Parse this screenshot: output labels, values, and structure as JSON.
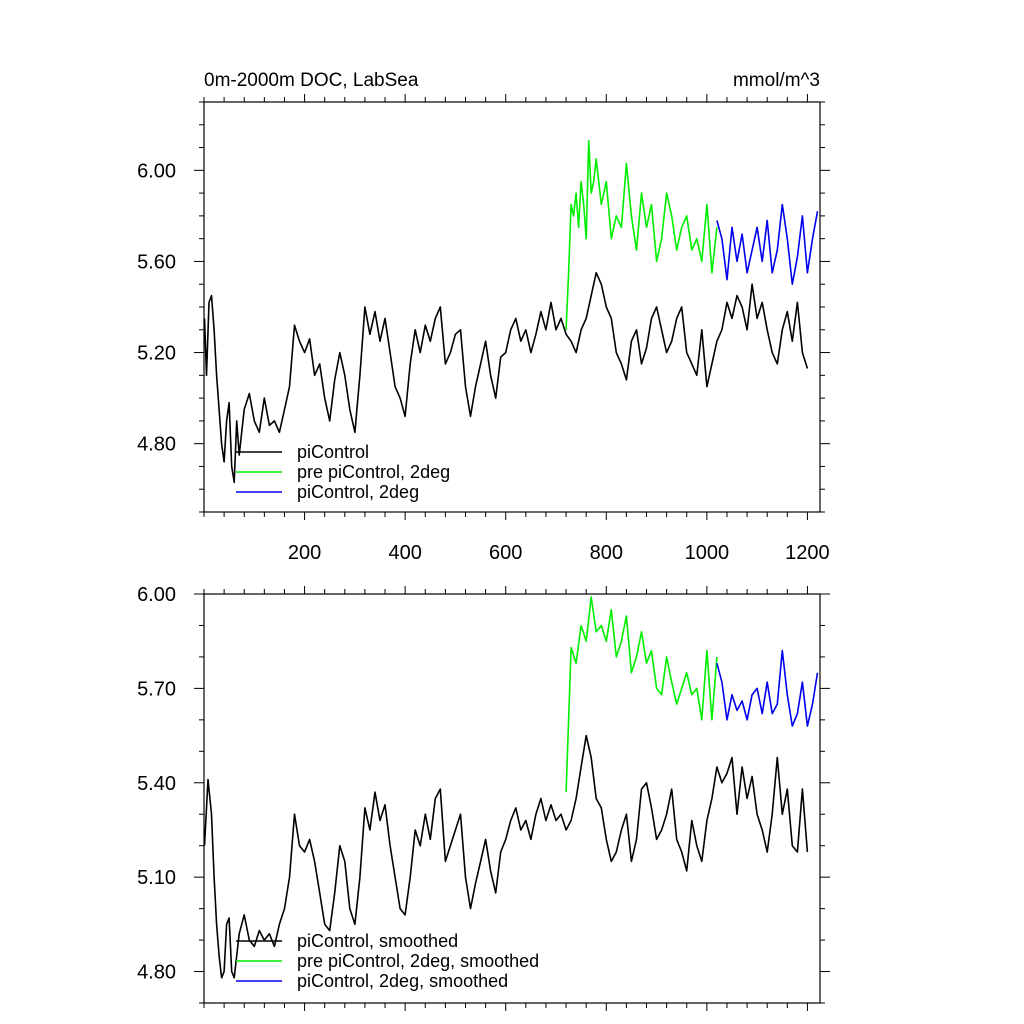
{
  "colors": {
    "piControl": "#000000",
    "pre_piControl_2deg": "#00ee00",
    "piControl_2deg": "#0000ee"
  },
  "chart_data": [
    {
      "type": "line",
      "title": "0m-2000m DOC, LabSea",
      "units": "mmol/m^3",
      "xlim": [
        0,
        1225
      ],
      "ylim": [
        4.5,
        6.3
      ],
      "xticks": [
        200,
        400,
        600,
        800,
        1000,
        1200
      ],
      "xtick_labels": [
        "200",
        "400",
        "600",
        "800",
        "1000",
        "1200"
      ],
      "yticks": [
        4.8,
        5.2,
        5.6,
        6.0
      ],
      "ytick_labels": [
        "4.80",
        "5.20",
        "5.60",
        "6.00"
      ],
      "legend_position": "bottom-left",
      "series": [
        {
          "name": "piControl",
          "color": "#000000",
          "x": [
            1,
            5,
            10,
            15,
            20,
            25,
            30,
            35,
            40,
            45,
            50,
            55,
            60,
            65,
            70,
            80,
            90,
            100,
            110,
            120,
            130,
            140,
            150,
            160,
            170,
            180,
            190,
            200,
            210,
            220,
            230,
            240,
            250,
            260,
            270,
            280,
            290,
            300,
            310,
            320,
            330,
            340,
            350,
            360,
            370,
            380,
            390,
            400,
            410,
            420,
            430,
            440,
            450,
            460,
            470,
            480,
            490,
            500,
            510,
            520,
            530,
            540,
            550,
            560,
            570,
            580,
            590,
            600,
            610,
            620,
            630,
            640,
            650,
            660,
            670,
            680,
            690,
            700,
            710,
            720,
            730,
            740,
            750,
            760,
            770,
            780,
            790,
            800,
            810,
            820,
            830,
            840,
            850,
            860,
            870,
            880,
            890,
            900,
            910,
            920,
            930,
            940,
            950,
            960,
            970,
            980,
            990,
            1000,
            1010,
            1020,
            1030,
            1040,
            1050,
            1060,
            1070,
            1080,
            1090,
            1100,
            1110,
            1120,
            1130,
            1140,
            1150,
            1160,
            1170,
            1180,
            1190,
            1200
          ],
          "y": [
            5.35,
            5.1,
            5.42,
            5.45,
            5.3,
            5.1,
            4.95,
            4.8,
            4.72,
            4.9,
            4.98,
            4.7,
            4.63,
            4.9,
            4.75,
            4.95,
            5.02,
            4.9,
            4.85,
            5.0,
            4.88,
            4.9,
            4.85,
            4.95,
            5.05,
            5.32,
            5.25,
            5.2,
            5.26,
            5.1,
            5.15,
            5.0,
            4.9,
            5.08,
            5.2,
            5.1,
            4.95,
            4.85,
            5.1,
            5.4,
            5.28,
            5.38,
            5.25,
            5.35,
            5.2,
            5.05,
            5.0,
            4.92,
            5.15,
            5.3,
            5.2,
            5.32,
            5.25,
            5.35,
            5.4,
            5.15,
            5.2,
            5.28,
            5.3,
            5.05,
            4.92,
            5.05,
            5.15,
            5.25,
            5.1,
            5.0,
            5.18,
            5.2,
            5.3,
            5.35,
            5.25,
            5.3,
            5.2,
            5.28,
            5.38,
            5.3,
            5.42,
            5.3,
            5.35,
            5.28,
            5.25,
            5.2,
            5.3,
            5.35,
            5.45,
            5.55,
            5.5,
            5.4,
            5.35,
            5.2,
            5.15,
            5.08,
            5.25,
            5.3,
            5.15,
            5.22,
            5.35,
            5.4,
            5.3,
            5.2,
            5.25,
            5.35,
            5.4,
            5.2,
            5.15,
            5.1,
            5.3,
            5.05,
            5.15,
            5.25,
            5.3,
            5.42,
            5.35,
            5.45,
            5.4,
            5.3,
            5.5,
            5.35,
            5.42,
            5.3,
            5.2,
            5.15,
            5.3,
            5.38,
            5.25,
            5.42,
            5.2,
            5.13
          ]
        },
        {
          "name": "pre piControl, 2deg",
          "color": "#00ee00",
          "x": [
            720,
            725,
            730,
            735,
            740,
            745,
            750,
            755,
            760,
            765,
            770,
            775,
            780,
            790,
            800,
            810,
            820,
            830,
            840,
            850,
            860,
            870,
            880,
            890,
            900,
            910,
            920,
            930,
            940,
            950,
            960,
            970,
            980,
            990,
            1000,
            1010,
            1020
          ],
          "y": [
            5.3,
            5.55,
            5.85,
            5.8,
            5.9,
            5.75,
            5.95,
            5.85,
            5.7,
            6.13,
            5.9,
            5.95,
            6.05,
            5.85,
            5.95,
            5.7,
            5.8,
            5.75,
            6.03,
            5.8,
            5.65,
            5.9,
            5.75,
            5.85,
            5.6,
            5.7,
            5.9,
            5.8,
            5.65,
            5.75,
            5.8,
            5.65,
            5.7,
            5.6,
            5.85,
            5.55,
            5.75
          ],
          "name_label": "pre piControl, 2deg"
        },
        {
          "name": "piControl, 2deg",
          "color": "#0000ee",
          "x": [
            1020,
            1030,
            1040,
            1050,
            1060,
            1070,
            1080,
            1090,
            1100,
            1110,
            1120,
            1130,
            1140,
            1150,
            1160,
            1170,
            1180,
            1190,
            1200,
            1210,
            1220
          ],
          "y": [
            5.78,
            5.7,
            5.52,
            5.75,
            5.6,
            5.72,
            5.55,
            5.65,
            5.75,
            5.6,
            5.78,
            5.55,
            5.65,
            5.85,
            5.7,
            5.5,
            5.62,
            5.8,
            5.55,
            5.7,
            5.82
          ]
        }
      ],
      "legend": [
        "piControl",
        "pre piControl, 2deg",
        "piControl, 2deg"
      ]
    },
    {
      "type": "line",
      "title": "",
      "xlim": [
        0,
        1225
      ],
      "ylim": [
        4.7,
        6.0
      ],
      "xticks": [
        200,
        400,
        600,
        800,
        1000,
        1200
      ],
      "yticks": [
        4.8,
        5.1,
        5.4,
        5.7,
        6.0
      ],
      "ytick_labels": [
        "4.80",
        "5.10",
        "5.40",
        "5.70",
        "6.00"
      ],
      "legend_position": "bottom-left",
      "series": [
        {
          "name": "piControl, smoothed",
          "color": "#000000",
          "x": [
            1,
            8,
            15,
            20,
            25,
            30,
            35,
            40,
            45,
            50,
            55,
            60,
            70,
            80,
            90,
            100,
            110,
            120,
            130,
            140,
            150,
            160,
            170,
            180,
            190,
            200,
            210,
            220,
            230,
            240,
            250,
            260,
            270,
            280,
            290,
            300,
            310,
            320,
            330,
            340,
            350,
            360,
            370,
            380,
            390,
            400,
            410,
            420,
            430,
            440,
            450,
            460,
            470,
            480,
            490,
            500,
            510,
            520,
            530,
            540,
            550,
            560,
            570,
            580,
            590,
            600,
            610,
            620,
            630,
            640,
            650,
            660,
            670,
            680,
            690,
            700,
            710,
            720,
            730,
            740,
            750,
            760,
            770,
            780,
            790,
            800,
            810,
            820,
            830,
            840,
            850,
            860,
            870,
            880,
            890,
            900,
            910,
            920,
            930,
            940,
            950,
            960,
            970,
            980,
            990,
            1000,
            1010,
            1020,
            1030,
            1040,
            1050,
            1060,
            1070,
            1080,
            1090,
            1100,
            1110,
            1120,
            1130,
            1140,
            1150,
            1160,
            1170,
            1180,
            1190,
            1200
          ],
          "y": [
            5.2,
            5.41,
            5.3,
            5.1,
            4.95,
            4.85,
            4.78,
            4.8,
            4.95,
            4.97,
            4.8,
            4.78,
            4.92,
            4.98,
            4.9,
            4.88,
            4.93,
            4.9,
            4.92,
            4.88,
            4.95,
            5.0,
            5.1,
            5.3,
            5.2,
            5.18,
            5.22,
            5.15,
            5.05,
            4.95,
            4.93,
            5.05,
            5.2,
            5.15,
            5.0,
            4.95,
            5.1,
            5.32,
            5.25,
            5.37,
            5.28,
            5.33,
            5.2,
            5.1,
            5.0,
            4.98,
            5.1,
            5.25,
            5.2,
            5.3,
            5.22,
            5.35,
            5.38,
            5.15,
            5.2,
            5.25,
            5.3,
            5.1,
            5.0,
            5.08,
            5.15,
            5.22,
            5.12,
            5.05,
            5.18,
            5.22,
            5.28,
            5.32,
            5.25,
            5.28,
            5.22,
            5.3,
            5.35,
            5.28,
            5.33,
            5.28,
            5.3,
            5.25,
            5.28,
            5.35,
            5.45,
            5.55,
            5.48,
            5.35,
            5.32,
            5.22,
            5.15,
            5.18,
            5.25,
            5.3,
            5.15,
            5.22,
            5.38,
            5.4,
            5.32,
            5.22,
            5.25,
            5.3,
            5.38,
            5.22,
            5.18,
            5.12,
            5.28,
            5.2,
            5.15,
            5.28,
            5.35,
            5.45,
            5.4,
            5.43,
            5.48,
            5.3,
            5.45,
            5.35,
            5.42,
            5.3,
            5.25,
            5.18,
            5.3,
            5.48,
            5.3,
            5.38,
            5.2,
            5.18,
            5.38,
            5.18
          ]
        },
        {
          "name": "pre piControl, 2deg, smoothed",
          "color": "#00ee00",
          "x": [
            720,
            725,
            730,
            740,
            750,
            760,
            770,
            780,
            790,
            800,
            810,
            820,
            830,
            840,
            850,
            860,
            870,
            880,
            890,
            900,
            910,
            920,
            930,
            940,
            950,
            960,
            970,
            980,
            990,
            1000,
            1010,
            1020
          ],
          "y": [
            5.37,
            5.6,
            5.83,
            5.78,
            5.9,
            5.85,
            5.99,
            5.88,
            5.9,
            5.85,
            5.95,
            5.8,
            5.85,
            5.93,
            5.75,
            5.8,
            5.88,
            5.78,
            5.82,
            5.7,
            5.68,
            5.8,
            5.72,
            5.65,
            5.7,
            5.75,
            5.68,
            5.7,
            5.6,
            5.82,
            5.6,
            5.8
          ]
        },
        {
          "name": "piControl, 2deg, smoothed",
          "color": "#0000ee",
          "x": [
            1020,
            1030,
            1040,
            1050,
            1060,
            1070,
            1080,
            1090,
            1100,
            1110,
            1120,
            1130,
            1140,
            1150,
            1160,
            1170,
            1180,
            1190,
            1200,
            1210,
            1220
          ],
          "y": [
            5.78,
            5.72,
            5.6,
            5.68,
            5.63,
            5.66,
            5.6,
            5.68,
            5.7,
            5.62,
            5.72,
            5.62,
            5.65,
            5.82,
            5.68,
            5.58,
            5.62,
            5.72,
            5.58,
            5.65,
            5.75
          ]
        }
      ],
      "legend": [
        "piControl, smoothed",
        "pre piControl, 2deg, smoothed",
        "piControl, 2deg, smoothed"
      ]
    }
  ]
}
